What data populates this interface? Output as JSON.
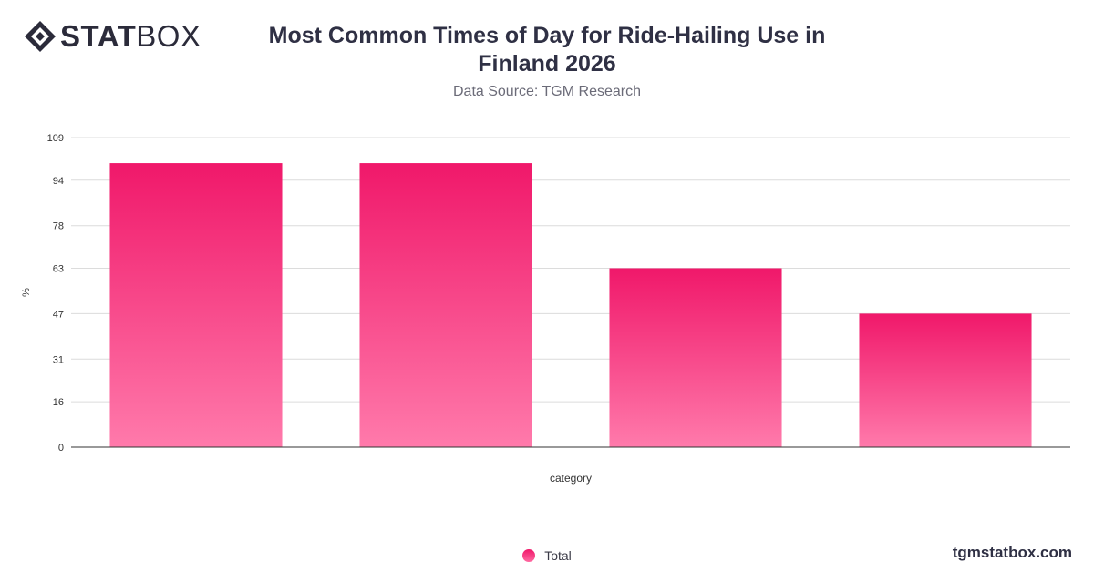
{
  "brand": {
    "logo_bold": "STAT",
    "logo_light": "BOX",
    "site": "tgmstatbox.com"
  },
  "header": {
    "title": "Most Common Times of Day for Ride-Hailing Use in Finland 2026",
    "subtitle": "Data Source: TGM Research"
  },
  "colors": {
    "bar_top": "#f0186a",
    "bar_bottom": "#ff7aab",
    "grid": "#dcdcdc",
    "axis": "#333333"
  },
  "chart_data": {
    "type": "bar",
    "categories": [
      "",
      "",
      "",
      ""
    ],
    "series": [
      {
        "name": "Total",
        "values": [
          100,
          100,
          63,
          47
        ]
      }
    ],
    "xlabel": "category",
    "ylabel": "%",
    "ylim": [
      0,
      109
    ],
    "yticks": [
      0,
      16,
      31,
      47,
      63,
      78,
      94,
      109
    ],
    "grid": true,
    "legend": "bottom-center"
  }
}
